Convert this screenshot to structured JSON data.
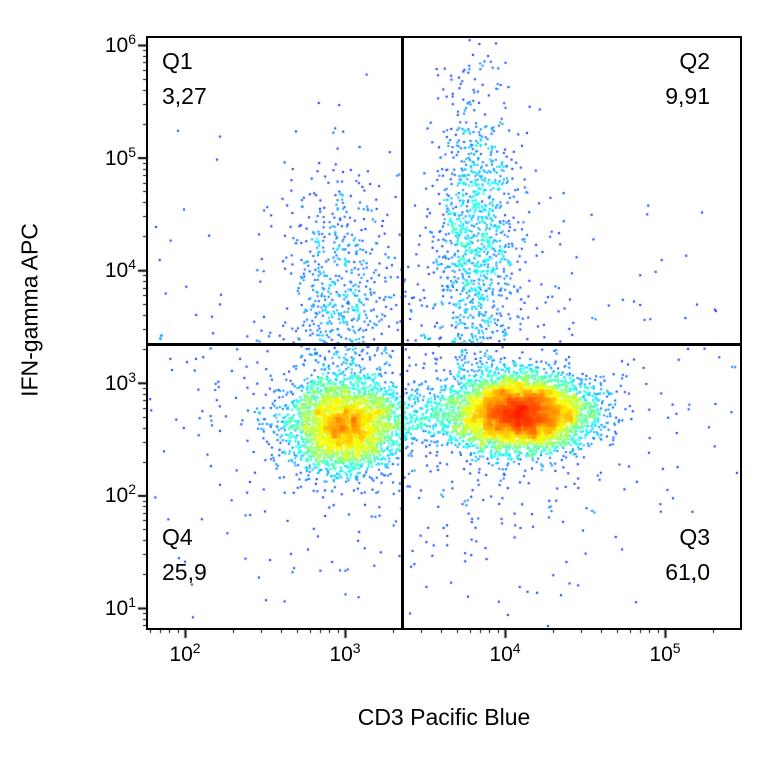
{
  "chart_data": {
    "type": "scatter",
    "subtype": "flow-cytometry-pseudocolor-density",
    "title": "",
    "xlabel": "CD3 Pacific Blue",
    "ylabel": "IFN-gamma APC",
    "x_scale": "log",
    "y_scale": "log",
    "tick_base": "10",
    "x_ticks_exponents": [
      2,
      3,
      4,
      5
    ],
    "y_ticks_exponents": [
      1,
      2,
      3,
      4,
      5,
      6
    ],
    "x_range_log10": [
      1.77,
      5.47
    ],
    "y_range_log10": [
      0.82,
      6.06
    ],
    "grid": false,
    "legend": false,
    "gates": {
      "x_log10": 3.36,
      "y_log10": 3.34,
      "x_value_approx": 2300,
      "y_value_approx": 2200
    },
    "quadrants": [
      {
        "name": "Q1",
        "value": "3,27",
        "position": "top-left"
      },
      {
        "name": "Q2",
        "value": "9,91",
        "position": "top-right"
      },
      {
        "name": "Q3",
        "value": "61,0",
        "position": "bottom-right"
      },
      {
        "name": "Q4",
        "value": "25,9",
        "position": "bottom-left"
      }
    ],
    "populations": [
      {
        "name": "CD3neg-IFNgneg-cluster",
        "n": 3500,
        "cx": 3.0,
        "cy": 2.62,
        "sx": 0.17,
        "sy": 0.2
      },
      {
        "name": "CD3pos-IFNgneg-cluster",
        "n": 6500,
        "cx": 4.1,
        "cy": 2.73,
        "sx": 0.2,
        "sy": 0.16
      },
      {
        "name": "CD3pos-IFNgpos-smear",
        "n": 1100,
        "cx": 3.82,
        "cy": 4.3,
        "sx": 0.13,
        "sy": 0.65
      },
      {
        "name": "CD3neg-IFNgpos-smear",
        "n": 550,
        "cx": 2.95,
        "cy": 3.8,
        "sx": 0.16,
        "sy": 0.55
      },
      {
        "name": "background-scatter",
        "n": 900,
        "cx": 3.5,
        "cy": 2.9,
        "sx": 0.85,
        "sy": 0.9
      },
      {
        "name": "bridge-between-clusters",
        "n": 600,
        "cx": 3.55,
        "cy": 2.7,
        "sx": 0.35,
        "sy": 0.14
      }
    ],
    "colormap": "jet",
    "sparse_point_color": "#0040ff",
    "dense_core_color": "#ff1a00",
    "axis_color": "#000000"
  }
}
